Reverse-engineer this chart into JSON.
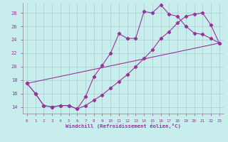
{
  "xlabel": "Windchill (Refroidissement éolien,°C)",
  "bg_color": "#c8eded",
  "line_color": "#993399",
  "grid_color": "#aacccc",
  "xlim": [
    -0.5,
    23.5
  ],
  "ylim": [
    13.0,
    29.5
  ],
  "yticks": [
    14,
    16,
    18,
    20,
    22,
    24,
    26,
    28
  ],
  "xticks": [
    0,
    1,
    2,
    3,
    4,
    5,
    6,
    7,
    8,
    9,
    10,
    11,
    12,
    13,
    14,
    15,
    16,
    17,
    18,
    19,
    20,
    21,
    22,
    23
  ],
  "series1_x": [
    0,
    1,
    2,
    3,
    4,
    5,
    6,
    7,
    8,
    9,
    10,
    11,
    12,
    13,
    14,
    15,
    16,
    17,
    18,
    19,
    20,
    21,
    22,
    23
  ],
  "series1_y": [
    17.5,
    16.0,
    14.2,
    14.0,
    14.2,
    14.2,
    13.7,
    15.5,
    18.5,
    20.2,
    22.0,
    24.9,
    24.2,
    24.2,
    28.2,
    28.0,
    29.2,
    27.8,
    27.5,
    26.0,
    25.0,
    24.8,
    24.2,
    23.5
  ],
  "series2_x": [
    0,
    1,
    2,
    3,
    4,
    5,
    6,
    7,
    8,
    9,
    10,
    11,
    12,
    13,
    14,
    15,
    16,
    17,
    18,
    19,
    20,
    21,
    22,
    23
  ],
  "series2_y": [
    17.5,
    16.0,
    14.2,
    14.0,
    14.2,
    14.2,
    13.7,
    14.2,
    15.0,
    15.8,
    16.8,
    17.8,
    18.8,
    20.0,
    21.2,
    22.5,
    24.2,
    25.2,
    26.5,
    27.5,
    27.8,
    28.0,
    26.2,
    23.5
  ],
  "series3_x": [
    0,
    23
  ],
  "series3_y": [
    17.5,
    23.5
  ],
  "marker_size": 2.2,
  "linewidth": 0.8
}
